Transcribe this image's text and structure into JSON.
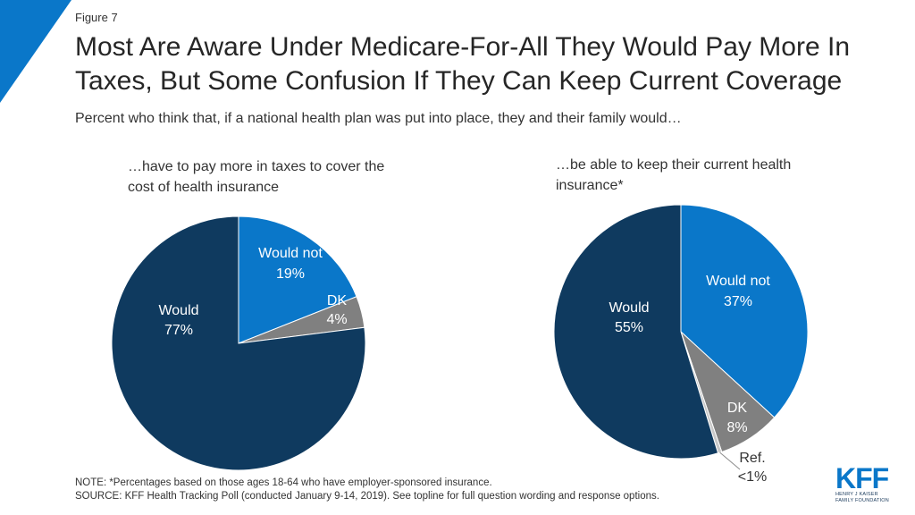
{
  "figure_label": "Figure 7",
  "title": "Most Are Aware Under Medicare-For-All They Would Pay More In Taxes, But Some Confusion If They Can Keep Current Coverage",
  "subtitle": "Percent who think that, if a national health plan was put into place, they and their family would…",
  "colors": {
    "would": "#0f3a5f",
    "would_not": "#0a77c9",
    "dk": "#808080",
    "ref": "#c8c8c8",
    "corner_accent": "#0a77c9"
  },
  "chart_data": [
    {
      "type": "pie",
      "title": "…have to pay more in taxes to cover the cost of health insurance",
      "slices": [
        {
          "key": "would_not",
          "label": "Would not",
          "value": 19,
          "display": "19%"
        },
        {
          "key": "dk",
          "label": "DK",
          "value": 4,
          "display": "4%"
        },
        {
          "key": "would",
          "label": "Would",
          "value": 77,
          "display": "77%"
        }
      ]
    },
    {
      "type": "pie",
      "title": "…be able to keep their current health insurance*",
      "slices": [
        {
          "key": "would_not",
          "label": "Would not",
          "value": 37,
          "display": "37%"
        },
        {
          "key": "dk",
          "label": "DK",
          "value": 8,
          "display": "8%"
        },
        {
          "key": "ref",
          "label": "Ref.",
          "value": 0.5,
          "display": "<1%"
        },
        {
          "key": "would",
          "label": "Would",
          "value": 55,
          "display": "55%"
        }
      ]
    }
  ],
  "note": "NOTE: *Percentages based on those ages 18-64 who have employer-sponsored insurance.",
  "source": "SOURCE: KFF Health Tracking Poll (conducted January 9-14, 2019). See topline for full question wording and response options.",
  "logo": {
    "letters": "KFF",
    "line1": "HENRY J KAISER",
    "line2": "FAMILY FOUNDATION"
  }
}
